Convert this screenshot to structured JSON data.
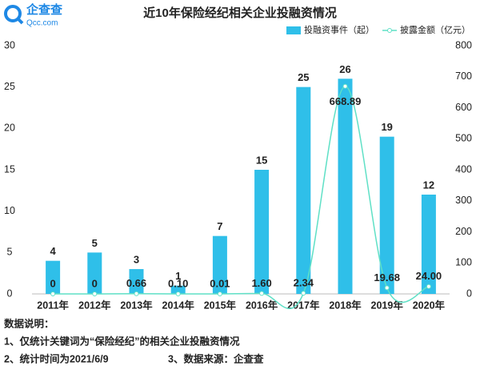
{
  "logo": {
    "name": "企查查",
    "site": "Qcc.com"
  },
  "chart_data": {
    "type": "bar",
    "title": "近10年保险经纪相关企业投融资情况",
    "categories": [
      "2011年",
      "2012年",
      "2013年",
      "2014年",
      "2015年",
      "2016年",
      "2017年",
      "2018年",
      "2019年",
      "2020年"
    ],
    "series": [
      {
        "name": "投融资事件（起）",
        "type": "bar",
        "color": "#2fbfe9",
        "values": [
          4,
          5,
          3,
          1,
          7,
          15,
          25,
          26,
          19,
          12
        ]
      },
      {
        "name": "披露金额（亿元）",
        "type": "line",
        "axis": "y2",
        "color": "#5fe0c6",
        "values": [
          0,
          0,
          0.66,
          0.1,
          0.01,
          1.6,
          2.34,
          668.89,
          19.68,
          24.0
        ],
        "value_labels": [
          "0",
          "0",
          "0.66",
          "0.10",
          "0.01",
          "1.60",
          "2.34",
          "668.89",
          "19.68",
          "24.00"
        ]
      }
    ],
    "ylim": [
      0,
      30
    ],
    "yticks": [
      0,
      5,
      10,
      15,
      20,
      25,
      30
    ],
    "y2lim": [
      0,
      800
    ],
    "y2ticks": [
      0,
      100,
      200,
      300,
      400,
      500,
      600,
      700,
      800
    ],
    "grid": false,
    "legend": "top-right"
  },
  "notes": {
    "heading": "数据说明：",
    "lines": [
      "1、仅统计关键词为“保险经纪”的相关企业投融资情况",
      "2、统计时间为2021/6/9",
      "3、数据来源：企查查"
    ]
  }
}
